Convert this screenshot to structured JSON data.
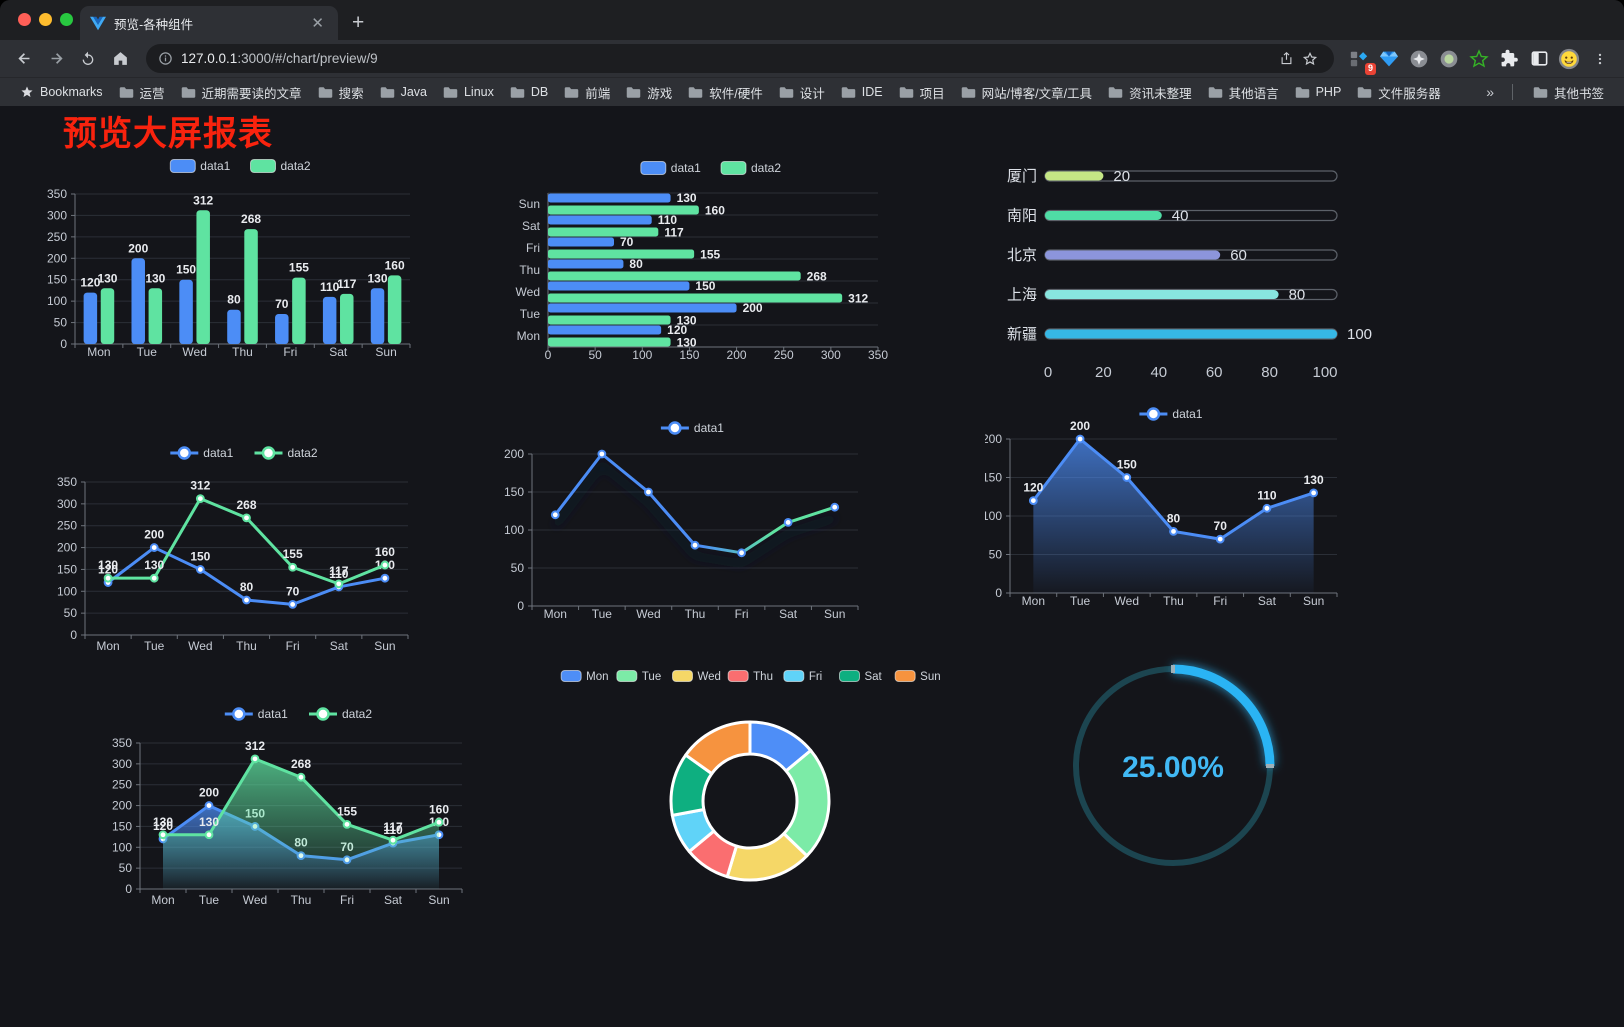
{
  "browser": {
    "tab_title": "预览-各种组件",
    "new_tab_button": "+",
    "url_host": "127.0.0.1",
    "url_rest": ":3000/#/chart/preview/9",
    "bookmarks_label": "Bookmarks",
    "bookmark_folders": [
      "运营",
      "近期需要读的文章",
      "搜索",
      "Java",
      "Linux",
      "DB",
      "前端",
      "游戏",
      "软件/硬件",
      "设计",
      "IDE",
      "项目",
      "网站/博客/文章/工具",
      "资讯未整理",
      "其他语言",
      "PHP",
      "文件服务器"
    ],
    "overflow_chevron": "»",
    "other_bookmarks_label": "其他书签",
    "extension_badge_count": "9"
  },
  "page": {
    "title": "预览大屏报表",
    "title_color": "#f9230e"
  },
  "chart_data": [
    {
      "id": "grouped-bar",
      "type": "bar",
      "categories": [
        "Mon",
        "Tue",
        "Wed",
        "Thu",
        "Fri",
        "Sat",
        "Sun"
      ],
      "series": [
        {
          "name": "data1",
          "color": "#4C8DF6",
          "values": [
            120,
            200,
            150,
            80,
            70,
            110,
            130
          ]
        },
        {
          "name": "data2",
          "color": "#5FE3A1",
          "values": [
            130,
            130,
            312,
            268,
            155,
            117,
            160
          ]
        }
      ],
      "ylim": [
        0,
        350
      ],
      "ystep": 50,
      "grid": true,
      "legend_position": "top",
      "labels_visible": true
    },
    {
      "id": "horizontal-bar",
      "type": "bar-horizontal",
      "categories": [
        "Mon",
        "Tue",
        "Wed",
        "Thu",
        "Fri",
        "Sat",
        "Sun"
      ],
      "category_order_top_to_bottom": [
        "Sun",
        "Sat",
        "Fri",
        "Thu",
        "Wed",
        "Tue",
        "Mon"
      ],
      "series": [
        {
          "name": "data1",
          "color": "#4C8DF6",
          "values": [
            120,
            200,
            150,
            80,
            70,
            110,
            130
          ]
        },
        {
          "name": "data2",
          "color": "#5FE3A1",
          "values": [
            130,
            130,
            312,
            268,
            155,
            117,
            160
          ]
        }
      ],
      "xlim": [
        0,
        350
      ],
      "xstep": 50,
      "grid": true,
      "legend_position": "top",
      "labels_visible": true
    },
    {
      "id": "progress-bars",
      "type": "bar-progress",
      "items": [
        {
          "label": "厦门",
          "value": 20,
          "color": "#C5E685"
        },
        {
          "label": "南阳",
          "value": 40,
          "color": "#4FDCA5"
        },
        {
          "label": "北京",
          "value": 60,
          "color": "#8C95DB"
        },
        {
          "label": "上海",
          "value": 80,
          "color": "#88E5DF"
        },
        {
          "label": "新疆",
          "value": 100,
          "color": "#36B7E5"
        }
      ],
      "xlim": [
        0,
        100
      ],
      "xticks": [
        0,
        20,
        40,
        60,
        80,
        100
      ]
    },
    {
      "id": "dual-line",
      "type": "line",
      "categories": [
        "Mon",
        "Tue",
        "Wed",
        "Thu",
        "Fri",
        "Sat",
        "Sun"
      ],
      "series": [
        {
          "name": "data1",
          "color": "#4C8DF6",
          "values": [
            120,
            200,
            150,
            80,
            70,
            110,
            130
          ]
        },
        {
          "name": "data2",
          "color": "#5FE3A1",
          "values": [
            130,
            130,
            312,
            268,
            155,
            117,
            160
          ]
        }
      ],
      "ylim": [
        0,
        350
      ],
      "ystep": 50,
      "grid": true,
      "legend_position": "top",
      "labels_visible": true
    },
    {
      "id": "gradient-line",
      "type": "line-gradient",
      "categories": [
        "Mon",
        "Tue",
        "Wed",
        "Thu",
        "Fri",
        "Sat",
        "Sun"
      ],
      "series": [
        {
          "name": "data1",
          "color": "#4C8DF6",
          "color_end": "#5FE3A1",
          "values": [
            120,
            200,
            150,
            80,
            70,
            110,
            130
          ]
        }
      ],
      "ylim": [
        0,
        200
      ],
      "ystep": 50,
      "grid": true,
      "legend_position": "top",
      "labels_visible": false
    },
    {
      "id": "area-line",
      "type": "area",
      "categories": [
        "Mon",
        "Tue",
        "Wed",
        "Thu",
        "Fri",
        "Sat",
        "Sun"
      ],
      "series": [
        {
          "name": "data1",
          "color": "#4C8DF6",
          "values": [
            120,
            200,
            150,
            80,
            70,
            110,
            130
          ]
        }
      ],
      "ylim": [
        0,
        200
      ],
      "ystep": 50,
      "grid": true,
      "legend_position": "top",
      "labels_visible": true
    },
    {
      "id": "dual-area",
      "type": "area",
      "categories": [
        "Mon",
        "Tue",
        "Wed",
        "Thu",
        "Fri",
        "Sat",
        "Sun"
      ],
      "series": [
        {
          "name": "data1",
          "color": "#4C8DF6",
          "values": [
            120,
            200,
            150,
            80,
            70,
            110,
            130
          ]
        },
        {
          "name": "data2",
          "color": "#5FE3A1",
          "values": [
            130,
            130,
            312,
            268,
            155,
            117,
            160
          ]
        }
      ],
      "ylim": [
        0,
        350
      ],
      "ystep": 50,
      "grid": true,
      "legend_position": "top",
      "labels_visible": true
    },
    {
      "id": "donut",
      "type": "pie",
      "items": [
        {
          "label": "Mon",
          "value": 120,
          "color": "#4E8EF7"
        },
        {
          "label": "Tue",
          "value": 200,
          "color": "#7CEBA7"
        },
        {
          "label": "Wed",
          "value": 150,
          "color": "#F5D767"
        },
        {
          "label": "Thu",
          "value": 80,
          "color": "#FA6E70"
        },
        {
          "label": "Fri",
          "value": 70,
          "color": "#60D3F8"
        },
        {
          "label": "Sat",
          "value": 110,
          "color": "#0EAF80"
        },
        {
          "label": "Sun",
          "value": 130,
          "color": "#F6933F"
        }
      ],
      "legend_position": "top",
      "inner_radius_ratio": 0.59
    },
    {
      "id": "gauge",
      "type": "gauge",
      "value_label": "25.00%",
      "percent": 25,
      "color": "#2CB4F4",
      "track_color": "#1C4550",
      "text_color": "#41B9F5"
    }
  ]
}
